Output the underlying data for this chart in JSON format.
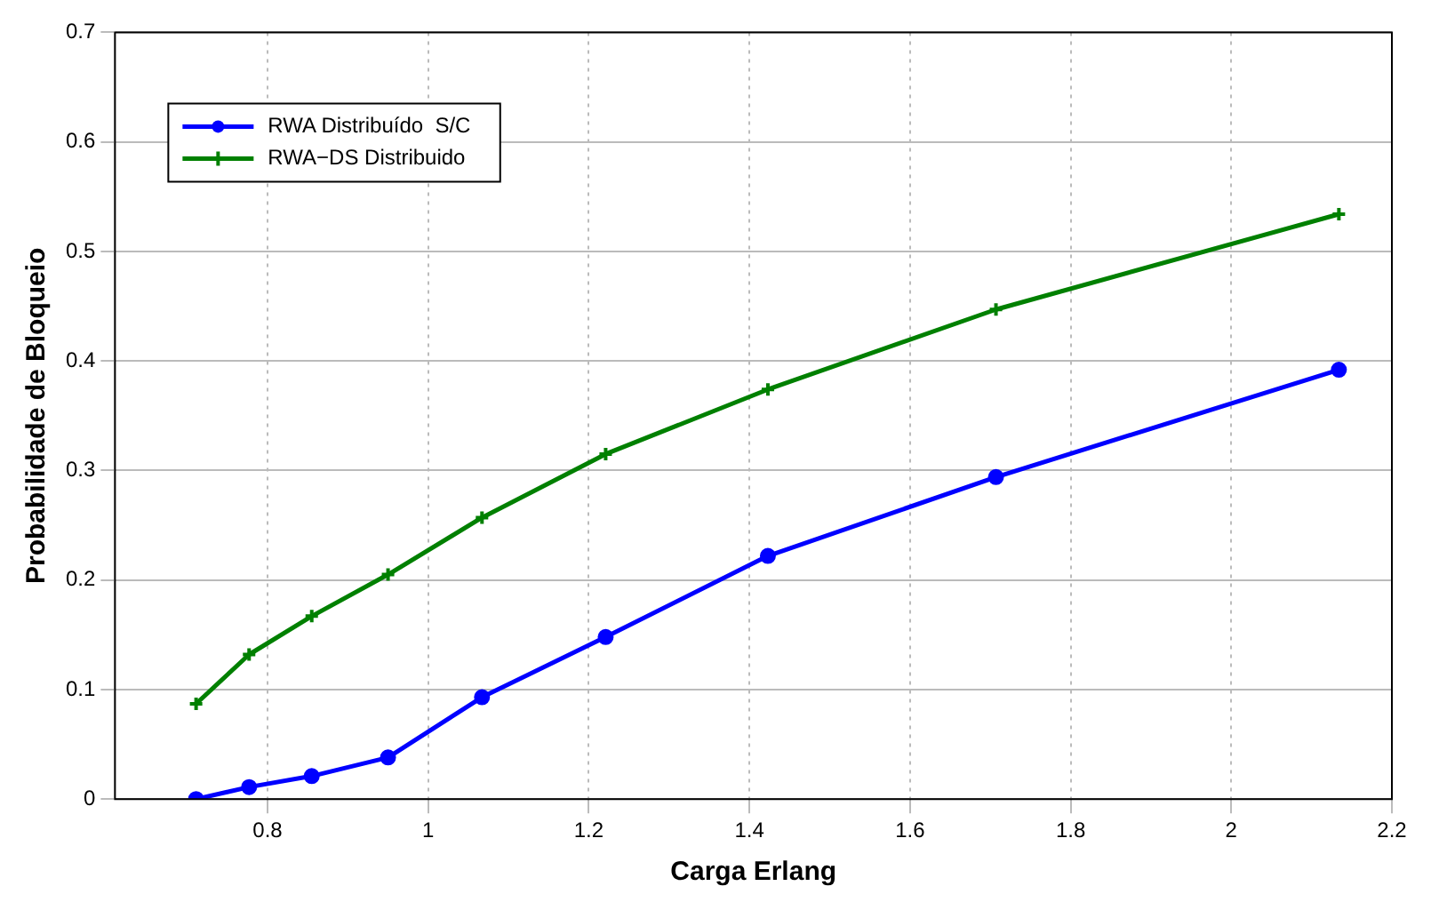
{
  "chart_data": {
    "type": "line",
    "xlabel": "Carga Erlang",
    "ylabel": "Probabilidade de Bloqueio",
    "x": [
      0.711,
      0.777,
      0.855,
      0.95,
      1.067,
      1.221,
      1.423,
      1.707,
      2.134
    ],
    "series": [
      {
        "name": "RWA Distribuído  S/C",
        "color": "#0000ff",
        "marker": "circle",
        "values": [
          0,
          0.011,
          0.021,
          0.038,
          0.093,
          0.148,
          0.222,
          0.294,
          0.392
        ]
      },
      {
        "name": "RWA−DS Distribuido",
        "color": "#008000",
        "marker": "cross",
        "values": [
          0.087,
          0.132,
          0.167,
          0.205,
          0.257,
          0.315,
          0.374,
          0.447,
          0.534
        ]
      }
    ],
    "xlim": [
      0.61,
      2.2
    ],
    "xticks": [
      0.8,
      1,
      1.2,
      1.4,
      1.6,
      1.8,
      2,
      2.2
    ],
    "ylim": [
      0,
      0.7
    ],
    "yticks": [
      0,
      0.1,
      0.2,
      0.3,
      0.4,
      0.5,
      0.6,
      0.7
    ],
    "grid": true,
    "legend": "top left",
    "line_style": "solid"
  }
}
